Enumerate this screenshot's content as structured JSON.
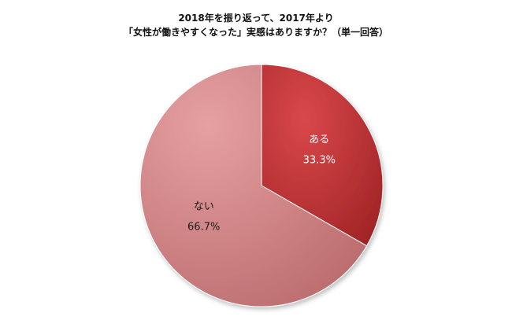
{
  "chart_data": {
    "type": "pie",
    "title_lines": [
      "2018年を振り返って、2017年より",
      "「女性が働きやすくなった」実感はありますか？（単一回答）"
    ],
    "start_angle_deg": 0,
    "direction": "clockwise",
    "slices": [
      {
        "label": "ある",
        "value": 33.3,
        "display": "33.3%",
        "color": "#c0393b",
        "label_color": "#ffffff"
      },
      {
        "label": "ない",
        "value": 66.7,
        "display": "66.7%",
        "color": "#d98a8c",
        "label_color": "#1a1a1a"
      }
    ]
  }
}
